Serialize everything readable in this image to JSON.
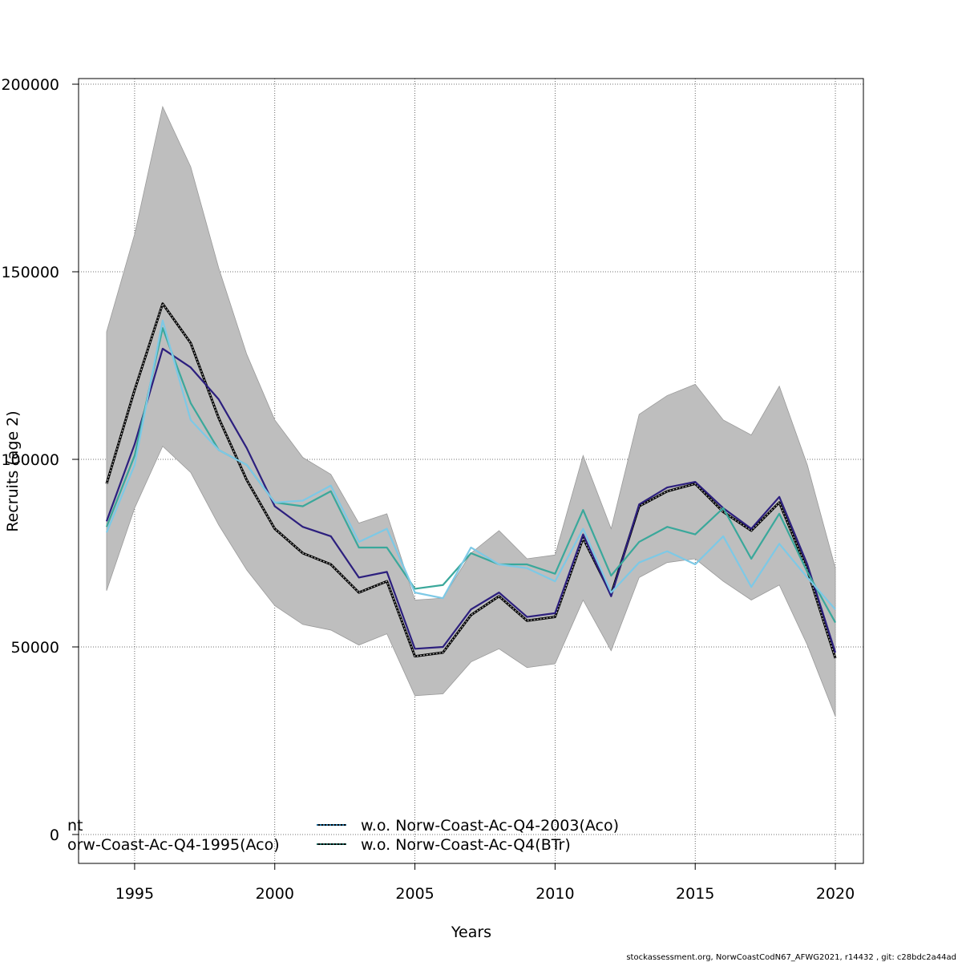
{
  "chart_data": {
    "type": "line",
    "title": "",
    "xlabel": "Years",
    "ylabel": "Recruits (age 2)",
    "xlim": [
      1993,
      2021
    ],
    "ylim": [
      -7700,
      201500
    ],
    "x_ticks": [
      1995,
      2000,
      2005,
      2010,
      2015,
      2020
    ],
    "x_tick_labels": [
      "1995",
      "2000",
      "2005",
      "2010",
      "2015",
      "2020"
    ],
    "y_ticks": [
      0,
      50000,
      100000,
      150000,
      200000
    ],
    "y_tick_labels": [
      "0",
      "50000",
      "100000",
      "150000",
      "200000"
    ],
    "grid": true,
    "x": [
      1994,
      1995,
      1996,
      1997,
      1998,
      1999,
      2000,
      2001,
      2002,
      2003,
      2004,
      2005,
      2006,
      2007,
      2008,
      2009,
      2010,
      2011,
      2012,
      2013,
      2014,
      2015,
      2016,
      2017,
      2018,
      2019,
      2020
    ],
    "band": {
      "color": "#bebebe",
      "upper": [
        134000,
        160000,
        194000,
        178000,
        151000,
        128000,
        110500,
        100500,
        96000,
        83000,
        85500,
        62500,
        63000,
        75000,
        81000,
        73500,
        74500,
        101000,
        81500,
        112000,
        117000,
        120000,
        110500,
        106500,
        119500,
        98500,
        71000
      ],
      "lower": [
        65000,
        87000,
        103500,
        96500,
        82500,
        70500,
        61000,
        56000,
        54500,
        50500,
        53500,
        37000,
        37500,
        46000,
        49500,
        44500,
        45500,
        62500,
        49000,
        68500,
        72500,
        73500,
        67500,
        62500,
        66500,
        50500,
        31500
      ]
    },
    "series": [
      {
        "color": "#000000",
        "dashed": true,
        "values": [
          93500,
          118500,
          141500,
          131000,
          111000,
          94500,
          81500,
          75000,
          72000,
          64500,
          67500,
          47500,
          48500,
          58500,
          63500,
          57000,
          58000,
          79000,
          64000,
          87500,
          91500,
          93500,
          86000,
          81000,
          88500,
          70500,
          47000
        ]
      },
      {
        "color": "#2c1f7e",
        "dashed": false,
        "values": [
          83500,
          104000,
          129500,
          124500,
          116000,
          103000,
          87500,
          82000,
          79500,
          68500,
          70000,
          49500,
          50000,
          60000,
          64500,
          58000,
          59000,
          80000,
          63500,
          88000,
          92500,
          94000,
          87000,
          81500,
          90000,
          72000,
          48500
        ]
      },
      {
        "color": "#3aa89b",
        "dashed": false,
        "values": [
          82000,
          101000,
          135000,
          115000,
          102500,
          98500,
          88500,
          87500,
          91500,
          76500,
          76500,
          65500,
          66500,
          75000,
          72000,
          72000,
          69500,
          86500,
          69000,
          78000,
          82000,
          80000,
          87000,
          73500,
          85500,
          70000,
          56500
        ]
      },
      {
        "color": "#7dc9e6",
        "dashed": false,
        "values": [
          80500,
          98500,
          137000,
          110500,
          102500,
          98500,
          88500,
          89000,
          93000,
          78000,
          81500,
          64500,
          63000,
          76500,
          72000,
          71000,
          67500,
          81500,
          64500,
          72500,
          75500,
          72000,
          79500,
          66000,
          77500,
          68500,
          60000
        ]
      }
    ],
    "legend": {
      "position": "bottom",
      "entries": [
        {
          "label": "nt",
          "color": "#000000"
        },
        {
          "label": "orw-Coast-Ac-Q4-1995(Aco)",
          "color": "#000000"
        },
        {
          "label": "w.o. Norw-Coast-Ac-Q4-2003(Aco)",
          "color": "#1a86c7"
        },
        {
          "label": "w.o. Norw-Coast-Ac-Q4(BTr)",
          "color": "#1a7a6e"
        }
      ]
    }
  },
  "footer": "stockassessment.org, NorwCoastCodN67_AFWG2021, r14432 , git: c28bdc2a44ad"
}
